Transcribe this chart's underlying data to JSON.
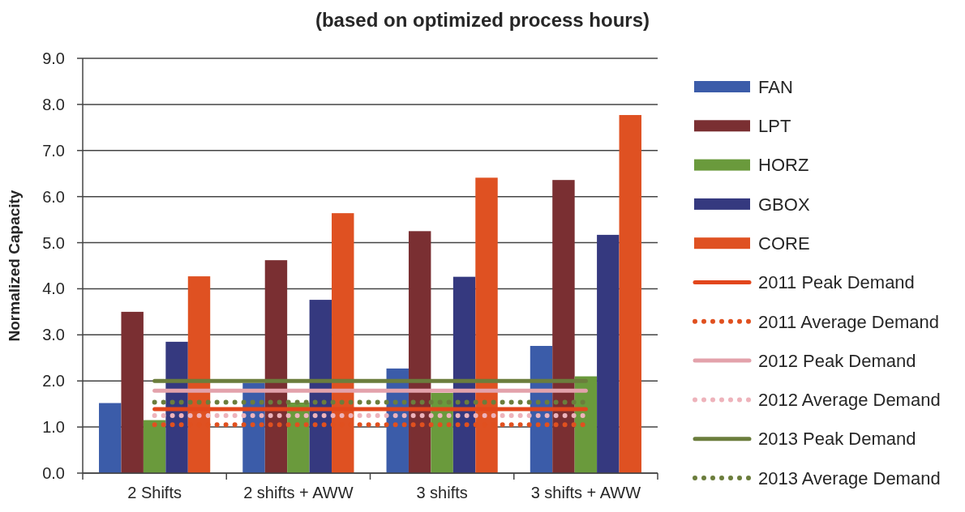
{
  "chart_data": {
    "type": "bar",
    "title": "(based on optimized process hours)",
    "ylabel": "Normalized Capacity",
    "categories": [
      "2 Shifts",
      "2 shifts + AWW",
      "3 shifts",
      "3 shifts + AWW"
    ],
    "series": [
      {
        "name": "FAN",
        "color": "#3b5ca9",
        "values": [
          1.52,
          1.96,
          2.27,
          2.76
        ]
      },
      {
        "name": "LPT",
        "color": "#7a2f32",
        "values": [
          3.5,
          4.62,
          5.25,
          6.36
        ]
      },
      {
        "name": "HORZ",
        "color": "#6a9a3c",
        "values": [
          1.15,
          1.53,
          1.74,
          2.1
        ]
      },
      {
        "name": "GBOX",
        "color": "#35397f",
        "values": [
          2.85,
          3.76,
          4.26,
          5.17
        ]
      },
      {
        "name": "CORE",
        "color": "#df5122",
        "values": [
          4.27,
          5.64,
          6.41,
          7.77
        ]
      },
      {
        "name": "2011 Peak Demand",
        "type": "line",
        "line_style": "solid",
        "color": "#e2461c",
        "values": [
          1.39,
          1.39,
          1.39,
          1.39
        ]
      },
      {
        "name": "2011 Average Demand",
        "type": "line",
        "line_style": "dotted",
        "color": "#e0501f",
        "values": [
          1.05,
          1.05,
          1.05,
          1.05
        ]
      },
      {
        "name": "2012 Peak Demand",
        "type": "line",
        "line_style": "solid",
        "color": "#e3a2ab",
        "values": [
          1.79,
          1.79,
          1.79,
          1.79
        ]
      },
      {
        "name": "2012 Average Demand",
        "type": "line",
        "line_style": "dotted",
        "color": "#eeb3bb",
        "values": [
          1.25,
          1.25,
          1.25,
          1.25
        ]
      },
      {
        "name": "2013 Peak Demand",
        "type": "line",
        "line_style": "solid",
        "color": "#6b7d3c",
        "values": [
          2.0,
          2.0,
          2.0,
          2.0
        ]
      },
      {
        "name": "2013 Average Demand",
        "type": "line",
        "line_style": "dotted",
        "color": "#6b7d3c",
        "values": [
          1.54,
          1.54,
          1.54,
          1.54
        ]
      }
    ],
    "ylim": [
      0,
      9
    ],
    "yticks": [
      {
        "value": 0,
        "label": "0.0"
      },
      {
        "value": 1,
        "label": "1.0"
      },
      {
        "value": 2,
        "label": "2.0"
      },
      {
        "value": 3,
        "label": "3.0"
      },
      {
        "value": 4,
        "label": "4.0"
      },
      {
        "value": 5,
        "label": "5.0"
      },
      {
        "value": 6,
        "label": "6.0"
      },
      {
        "value": 7,
        "label": "7.0"
      },
      {
        "value": 8,
        "label": "8.0"
      },
      {
        "value": 9,
        "label": "9.0"
      }
    ],
    "grid": "y",
    "legend": "right"
  }
}
